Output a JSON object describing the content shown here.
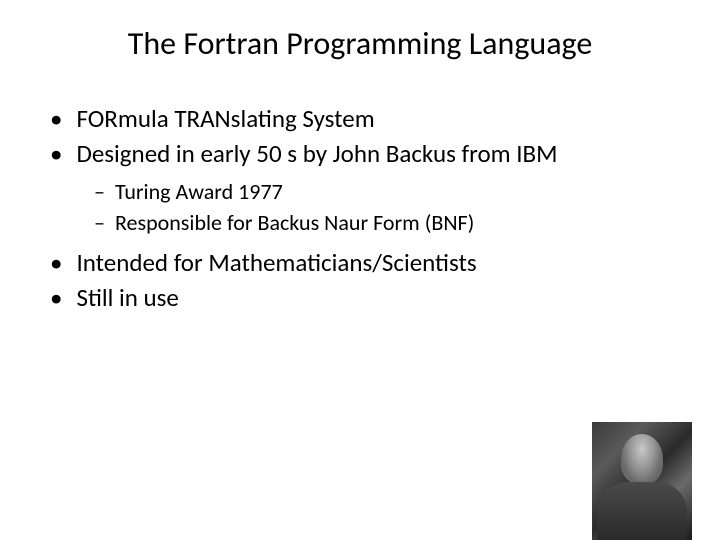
{
  "title": "The Fortran Programming Language",
  "bullets": {
    "l1_0": "FORmula TRANslating System",
    "l1_1": "Designed in early 50 s by John Backus from IBM",
    "l2_0": "Turing Award 1977",
    "l2_1": "Responsible for Backus Naur Form (BNF)",
    "l1_2": "Intended for Mathematicians/Scientists",
    "l1_3": "Still in use"
  },
  "markers": {
    "bullet": "•",
    "dash": "–"
  },
  "colors": {
    "text": "#000000",
    "background": "#ffffff"
  },
  "typography": {
    "title_fontsize": 32,
    "l1_fontsize": 25,
    "l2_fontsize": 22,
    "font_family": "Calibri"
  }
}
